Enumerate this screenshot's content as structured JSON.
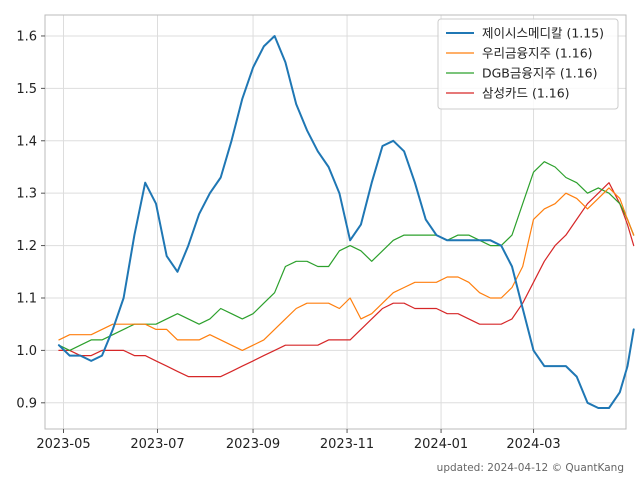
{
  "chart_data": {
    "type": "line",
    "title": "",
    "xlabel": "",
    "ylabel": "",
    "grid": true,
    "legend_position": "top-right",
    "x_range": [
      "2023-04-19",
      "2024-04-30"
    ],
    "ylim": [
      0.85,
      1.64
    ],
    "y_ticks": [
      0.9,
      1.0,
      1.1,
      1.2,
      1.3,
      1.4,
      1.5,
      1.6
    ],
    "x_ticks": [
      {
        "date": "2023-05-01",
        "label": "2023-05"
      },
      {
        "date": "2023-07-01",
        "label": "2023-07"
      },
      {
        "date": "2023-09-01",
        "label": "2023-09"
      },
      {
        "date": "2023-11-01",
        "label": "2023-11"
      },
      {
        "date": "2024-01-01",
        "label": "2024-01"
      },
      {
        "date": "2024-03-01",
        "label": "2024-03"
      }
    ],
    "series": [
      {
        "name": "제이시스메디칼 (1.15)",
        "color": "#1f77b4",
        "points": [
          [
            "2023-04-28",
            1.01
          ],
          [
            "2023-05-05",
            0.99
          ],
          [
            "2023-05-12",
            0.99
          ],
          [
            "2023-05-19",
            0.98
          ],
          [
            "2023-05-26",
            0.99
          ],
          [
            "2023-06-02",
            1.04
          ],
          [
            "2023-06-09",
            1.1
          ],
          [
            "2023-06-16",
            1.22
          ],
          [
            "2023-06-23",
            1.32
          ],
          [
            "2023-06-30",
            1.28
          ],
          [
            "2023-07-07",
            1.18
          ],
          [
            "2023-07-14",
            1.15
          ],
          [
            "2023-07-21",
            1.2
          ],
          [
            "2023-07-28",
            1.26
          ],
          [
            "2023-08-04",
            1.3
          ],
          [
            "2023-08-11",
            1.33
          ],
          [
            "2023-08-18",
            1.4
          ],
          [
            "2023-08-25",
            1.48
          ],
          [
            "2023-09-01",
            1.54
          ],
          [
            "2023-09-08",
            1.58
          ],
          [
            "2023-09-15",
            1.6
          ],
          [
            "2023-09-22",
            1.55
          ],
          [
            "2023-09-29",
            1.47
          ],
          [
            "2023-10-06",
            1.42
          ],
          [
            "2023-10-13",
            1.38
          ],
          [
            "2023-10-20",
            1.35
          ],
          [
            "2023-10-27",
            1.3
          ],
          [
            "2023-11-03",
            1.21
          ],
          [
            "2023-11-10",
            1.24
          ],
          [
            "2023-11-17",
            1.32
          ],
          [
            "2023-11-24",
            1.39
          ],
          [
            "2023-12-01",
            1.4
          ],
          [
            "2023-12-08",
            1.38
          ],
          [
            "2023-12-15",
            1.32
          ],
          [
            "2023-12-22",
            1.25
          ],
          [
            "2023-12-29",
            1.22
          ],
          [
            "2024-01-05",
            1.21
          ],
          [
            "2024-01-12",
            1.21
          ],
          [
            "2024-01-19",
            1.21
          ],
          [
            "2024-01-26",
            1.21
          ],
          [
            "2024-02-02",
            1.21
          ],
          [
            "2024-02-09",
            1.2
          ],
          [
            "2024-02-16",
            1.16
          ],
          [
            "2024-02-23",
            1.08
          ],
          [
            "2024-03-01",
            1.0
          ],
          [
            "2024-03-08",
            0.97
          ],
          [
            "2024-03-15",
            0.97
          ],
          [
            "2024-03-22",
            0.97
          ],
          [
            "2024-03-29",
            0.95
          ],
          [
            "2024-04-05",
            0.9
          ],
          [
            "2024-04-12",
            0.89
          ],
          [
            "2024-04-19",
            0.89
          ],
          [
            "2024-04-26",
            0.92
          ],
          [
            "2024-05-01",
            0.97
          ],
          [
            "2024-05-05",
            1.04
          ]
        ]
      },
      {
        "name": "우리금융지주 (1.16)",
        "color": "#ff7f0e",
        "points": [
          [
            "2023-04-28",
            1.02
          ],
          [
            "2023-05-05",
            1.03
          ],
          [
            "2023-05-12",
            1.03
          ],
          [
            "2023-05-19",
            1.03
          ],
          [
            "2023-05-26",
            1.04
          ],
          [
            "2023-06-02",
            1.05
          ],
          [
            "2023-06-09",
            1.05
          ],
          [
            "2023-06-16",
            1.05
          ],
          [
            "2023-06-23",
            1.05
          ],
          [
            "2023-06-30",
            1.04
          ],
          [
            "2023-07-07",
            1.04
          ],
          [
            "2023-07-14",
            1.02
          ],
          [
            "2023-07-21",
            1.02
          ],
          [
            "2023-07-28",
            1.02
          ],
          [
            "2023-08-04",
            1.03
          ],
          [
            "2023-08-11",
            1.02
          ],
          [
            "2023-08-18",
            1.01
          ],
          [
            "2023-08-25",
            1.0
          ],
          [
            "2023-09-01",
            1.01
          ],
          [
            "2023-09-08",
            1.02
          ],
          [
            "2023-09-15",
            1.04
          ],
          [
            "2023-09-22",
            1.06
          ],
          [
            "2023-09-29",
            1.08
          ],
          [
            "2023-10-06",
            1.09
          ],
          [
            "2023-10-13",
            1.09
          ],
          [
            "2023-10-20",
            1.09
          ],
          [
            "2023-10-27",
            1.08
          ],
          [
            "2023-11-03",
            1.1
          ],
          [
            "2023-11-10",
            1.06
          ],
          [
            "2023-11-17",
            1.07
          ],
          [
            "2023-11-24",
            1.09
          ],
          [
            "2023-12-01",
            1.11
          ],
          [
            "2023-12-08",
            1.12
          ],
          [
            "2023-12-15",
            1.13
          ],
          [
            "2023-12-22",
            1.13
          ],
          [
            "2023-12-29",
            1.13
          ],
          [
            "2024-01-05",
            1.14
          ],
          [
            "2024-01-12",
            1.14
          ],
          [
            "2024-01-19",
            1.13
          ],
          [
            "2024-01-26",
            1.11
          ],
          [
            "2024-02-02",
            1.1
          ],
          [
            "2024-02-09",
            1.1
          ],
          [
            "2024-02-16",
            1.12
          ],
          [
            "2024-02-23",
            1.16
          ],
          [
            "2024-03-01",
            1.25
          ],
          [
            "2024-03-08",
            1.27
          ],
          [
            "2024-03-15",
            1.28
          ],
          [
            "2024-03-22",
            1.3
          ],
          [
            "2024-03-29",
            1.29
          ],
          [
            "2024-04-05",
            1.27
          ],
          [
            "2024-04-12",
            1.29
          ],
          [
            "2024-04-19",
            1.31
          ],
          [
            "2024-04-26",
            1.29
          ],
          [
            "2024-05-01",
            1.25
          ],
          [
            "2024-05-05",
            1.22
          ]
        ]
      },
      {
        "name": "DGB금융지주 (1.16)",
        "color": "#2ca02c",
        "points": [
          [
            "2023-04-28",
            1.01
          ],
          [
            "2023-05-05",
            1.0
          ],
          [
            "2023-05-12",
            1.01
          ],
          [
            "2023-05-19",
            1.02
          ],
          [
            "2023-05-26",
            1.02
          ],
          [
            "2023-06-02",
            1.03
          ],
          [
            "2023-06-09",
            1.04
          ],
          [
            "2023-06-16",
            1.05
          ],
          [
            "2023-06-23",
            1.05
          ],
          [
            "2023-06-30",
            1.05
          ],
          [
            "2023-07-07",
            1.06
          ],
          [
            "2023-07-14",
            1.07
          ],
          [
            "2023-07-21",
            1.06
          ],
          [
            "2023-07-28",
            1.05
          ],
          [
            "2023-08-04",
            1.06
          ],
          [
            "2023-08-11",
            1.08
          ],
          [
            "2023-08-18",
            1.07
          ],
          [
            "2023-08-25",
            1.06
          ],
          [
            "2023-09-01",
            1.07
          ],
          [
            "2023-09-08",
            1.09
          ],
          [
            "2023-09-15",
            1.11
          ],
          [
            "2023-09-22",
            1.16
          ],
          [
            "2023-09-29",
            1.17
          ],
          [
            "2023-10-06",
            1.17
          ],
          [
            "2023-10-13",
            1.16
          ],
          [
            "2023-10-20",
            1.16
          ],
          [
            "2023-10-27",
            1.19
          ],
          [
            "2023-11-03",
            1.2
          ],
          [
            "2023-11-10",
            1.19
          ],
          [
            "2023-11-17",
            1.17
          ],
          [
            "2023-11-24",
            1.19
          ],
          [
            "2023-12-01",
            1.21
          ],
          [
            "2023-12-08",
            1.22
          ],
          [
            "2023-12-15",
            1.22
          ],
          [
            "2023-12-22",
            1.22
          ],
          [
            "2023-12-29",
            1.22
          ],
          [
            "2024-01-05",
            1.21
          ],
          [
            "2024-01-12",
            1.22
          ],
          [
            "2024-01-19",
            1.22
          ],
          [
            "2024-01-26",
            1.21
          ],
          [
            "2024-02-02",
            1.2
          ],
          [
            "2024-02-09",
            1.2
          ],
          [
            "2024-02-16",
            1.22
          ],
          [
            "2024-02-23",
            1.28
          ],
          [
            "2024-03-01",
            1.34
          ],
          [
            "2024-03-08",
            1.36
          ],
          [
            "2024-03-15",
            1.35
          ],
          [
            "2024-03-22",
            1.33
          ],
          [
            "2024-03-29",
            1.32
          ],
          [
            "2024-04-05",
            1.3
          ],
          [
            "2024-04-12",
            1.31
          ],
          [
            "2024-04-19",
            1.3
          ],
          [
            "2024-04-26",
            1.28
          ],
          [
            "2024-05-01",
            1.25
          ],
          [
            "2024-05-05",
            1.22
          ]
        ]
      },
      {
        "name": "삼성카드 (1.16)",
        "color": "#d62728",
        "points": [
          [
            "2023-04-28",
            1.0
          ],
          [
            "2023-05-05",
            1.0
          ],
          [
            "2023-05-12",
            0.99
          ],
          [
            "2023-05-19",
            0.99
          ],
          [
            "2023-05-26",
            1.0
          ],
          [
            "2023-06-02",
            1.0
          ],
          [
            "2023-06-09",
            1.0
          ],
          [
            "2023-06-16",
            0.99
          ],
          [
            "2023-06-23",
            0.99
          ],
          [
            "2023-06-30",
            0.98
          ],
          [
            "2023-07-07",
            0.97
          ],
          [
            "2023-07-14",
            0.96
          ],
          [
            "2023-07-21",
            0.95
          ],
          [
            "2023-07-28",
            0.95
          ],
          [
            "2023-08-04",
            0.95
          ],
          [
            "2023-08-11",
            0.95
          ],
          [
            "2023-08-18",
            0.96
          ],
          [
            "2023-08-25",
            0.97
          ],
          [
            "2023-09-01",
            0.98
          ],
          [
            "2023-09-08",
            0.99
          ],
          [
            "2023-09-15",
            1.0
          ],
          [
            "2023-09-22",
            1.01
          ],
          [
            "2023-09-29",
            1.01
          ],
          [
            "2023-10-06",
            1.01
          ],
          [
            "2023-10-13",
            1.01
          ],
          [
            "2023-10-20",
            1.02
          ],
          [
            "2023-10-27",
            1.02
          ],
          [
            "2023-11-03",
            1.02
          ],
          [
            "2023-11-10",
            1.04
          ],
          [
            "2023-11-17",
            1.06
          ],
          [
            "2023-11-24",
            1.08
          ],
          [
            "2023-12-01",
            1.09
          ],
          [
            "2023-12-08",
            1.09
          ],
          [
            "2023-12-15",
            1.08
          ],
          [
            "2023-12-22",
            1.08
          ],
          [
            "2023-12-29",
            1.08
          ],
          [
            "2024-01-05",
            1.07
          ],
          [
            "2024-01-12",
            1.07
          ],
          [
            "2024-01-19",
            1.06
          ],
          [
            "2024-01-26",
            1.05
          ],
          [
            "2024-02-02",
            1.05
          ],
          [
            "2024-02-09",
            1.05
          ],
          [
            "2024-02-16",
            1.06
          ],
          [
            "2024-02-23",
            1.09
          ],
          [
            "2024-03-01",
            1.13
          ],
          [
            "2024-03-08",
            1.17
          ],
          [
            "2024-03-15",
            1.2
          ],
          [
            "2024-03-22",
            1.22
          ],
          [
            "2024-03-29",
            1.25
          ],
          [
            "2024-04-05",
            1.28
          ],
          [
            "2024-04-12",
            1.3
          ],
          [
            "2024-04-19",
            1.32
          ],
          [
            "2024-04-26",
            1.28
          ],
          [
            "2024-05-01",
            1.24
          ],
          [
            "2024-05-05",
            1.2
          ]
        ]
      }
    ]
  },
  "footer": {
    "text": "updated: 2024-04-12 © QuantKang"
  }
}
